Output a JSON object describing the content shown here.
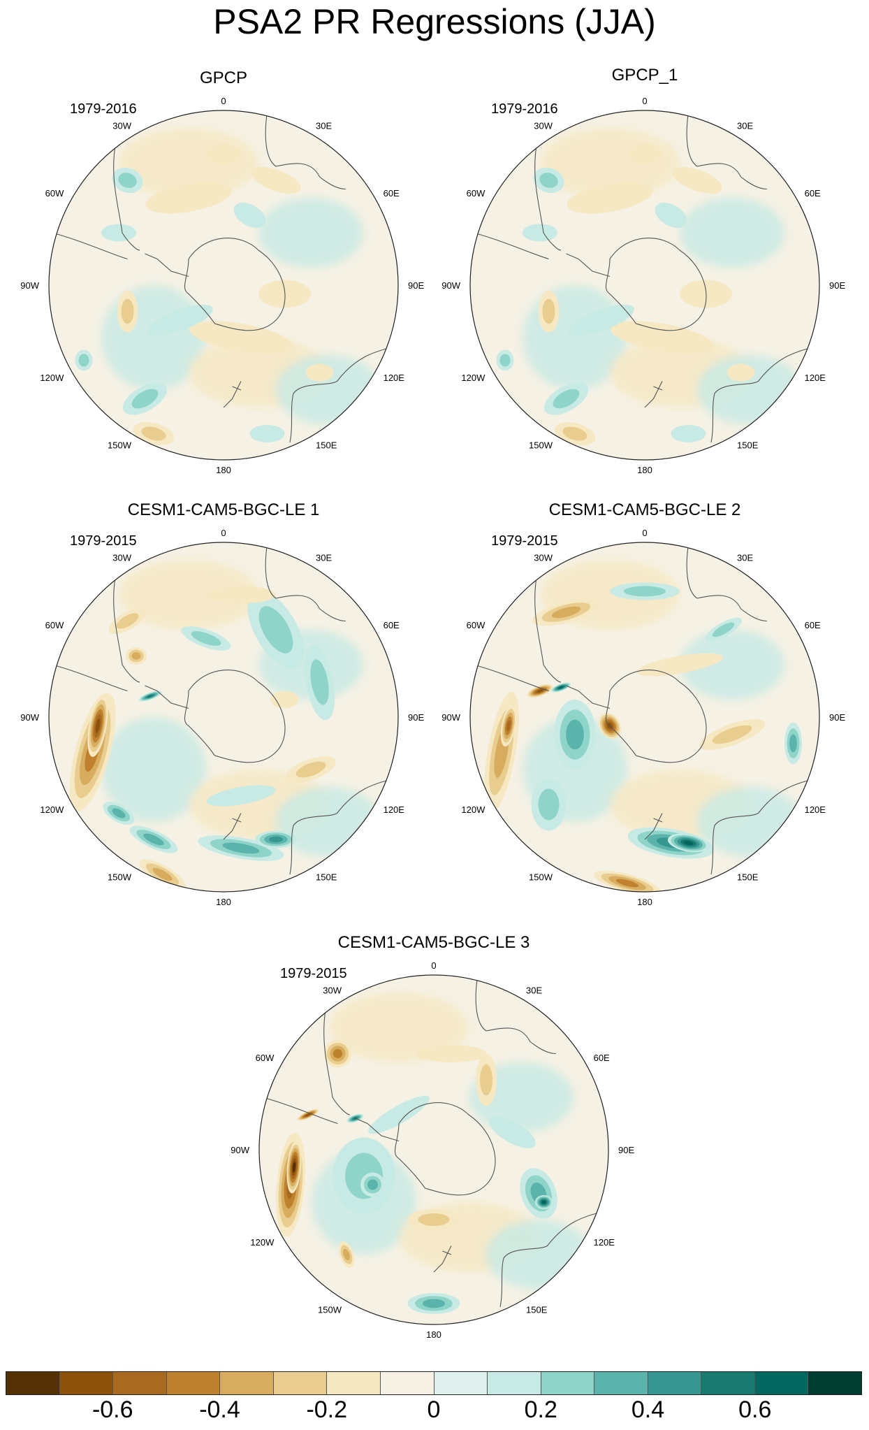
{
  "title": "PSA2 PR Regressions (JJA)",
  "panels": [
    {
      "name": "GPCP",
      "period": "1979-2016",
      "pattern": "obs"
    },
    {
      "name": "GPCP_1",
      "period": "1979-2016",
      "pattern": "obs"
    },
    {
      "name": "CESM1-CAM5-BGC-LE 1",
      "period": "1979-2015",
      "pattern": "le1"
    },
    {
      "name": "CESM1-CAM5-BGC-LE 2",
      "period": "1979-2015",
      "pattern": "le2"
    },
    {
      "name": "CESM1-CAM5-BGC-LE 3",
      "period": "1979-2015",
      "pattern": "le3"
    }
  ],
  "longitude_labels": [
    "0",
    "30E",
    "60E",
    "90E",
    "120E",
    "150E",
    "180",
    "150W",
    "120W",
    "90W",
    "60W",
    "30W"
  ],
  "colorbar": {
    "colors": [
      "#543005",
      "#8c510a",
      "#a86a1e",
      "#bf812d",
      "#d7ac5f",
      "#e8cd8f",
      "#f6e8c3",
      "#f5f1e4",
      "#e0f0ee",
      "#c7eae5",
      "#8fd4c8",
      "#5ab4ac",
      "#35978f",
      "#1a7a6f",
      "#01665e",
      "#003c30"
    ],
    "tick_labels": [
      "-0.6",
      "-0.4",
      "-0.2",
      "0",
      "0.2",
      "0.4",
      "0.6"
    ]
  }
}
